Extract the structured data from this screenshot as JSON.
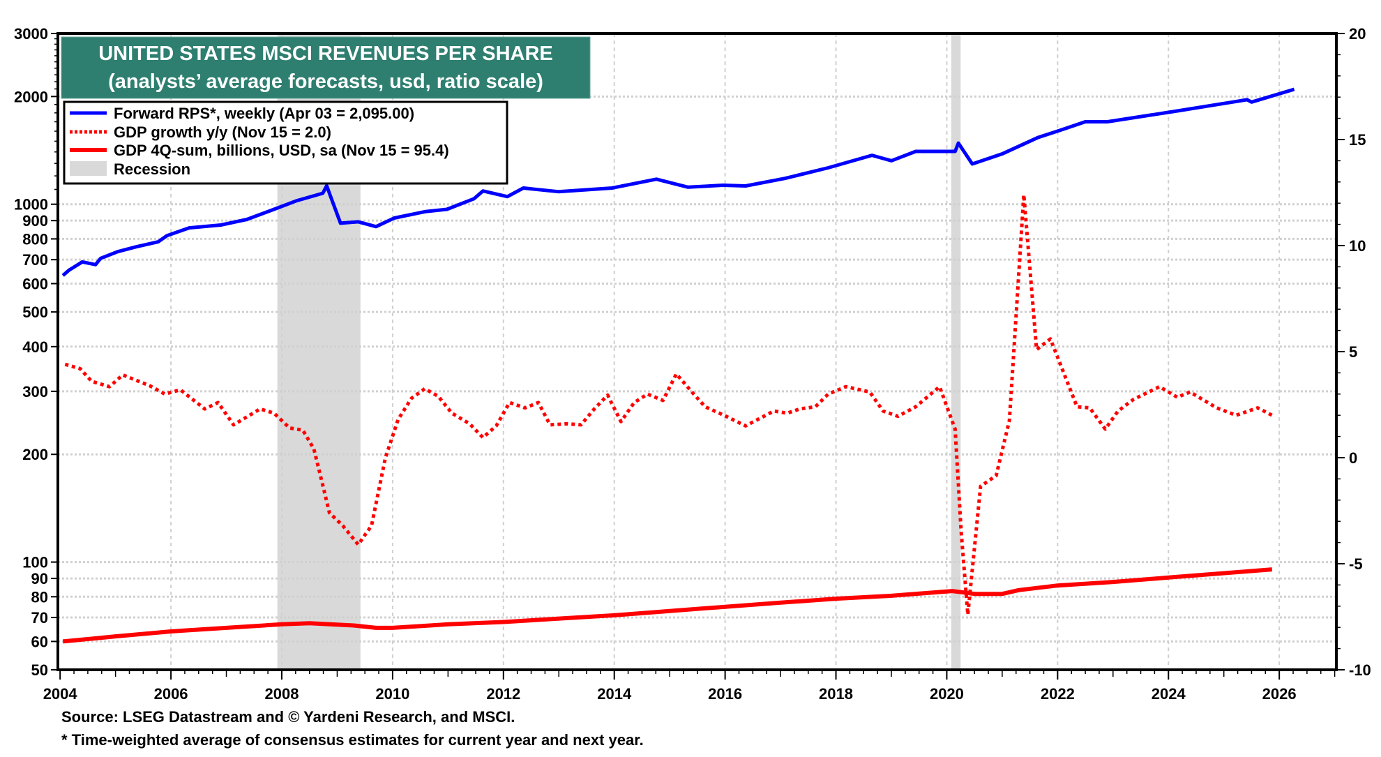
{
  "chart_data": {
    "type": "line",
    "title": "UNITED STATES MSCI REVENUES PER SHARE",
    "subtitle": "(analysts’ average forecasts, usd, ratio scale)",
    "xlim": [
      2003.96,
      2027.03
    ],
    "x_ticks": [
      "2004",
      "2006",
      "2008",
      "2010",
      "2012",
      "2014",
      "2016",
      "2018",
      "2020",
      "2022",
      "2024",
      "2026"
    ],
    "y_left": {
      "scale": "log",
      "range": [
        50,
        3000
      ],
      "ticks": [
        "3000",
        "2000",
        "1000",
        "900",
        "800",
        "700",
        "600",
        "500",
        "400",
        "300",
        "200",
        "100",
        "90",
        "80",
        "70",
        "60",
        "50"
      ]
    },
    "y_right": {
      "scale": "linear",
      "range": [
        -10,
        20
      ],
      "ticks": [
        "20",
        "15",
        "10",
        "5",
        "0",
        "-5",
        "-10"
      ]
    },
    "grid": true,
    "legend_placement": "top-left",
    "recessions": [
      [
        2007.92,
        2009.42
      ],
      [
        2020.08,
        2020.25
      ]
    ],
    "legend": [
      {
        "label": "Forward RPS*, weekly (Apr 03 = 2,095.00)",
        "style": "solid",
        "color": "#0000ff"
      },
      {
        "label": "GDP growth y/y (Nov 15 = 2.0)",
        "style": "dotted",
        "color": "#ff0000"
      },
      {
        "label": "GDP 4Q-sum, billions, USD, sa (Nov 15 = 95.4)",
        "style": "solid",
        "color": "#ff0000"
      },
      {
        "label": "Recession",
        "style": "box",
        "color": "#d9d9d9"
      }
    ],
    "series": [
      {
        "axis": "left",
        "color": "#0000ff",
        "points": [
          [
            2004.05,
            632
          ],
          [
            2004.16,
            654
          ],
          [
            2004.4,
            690
          ],
          [
            2004.64,
            678
          ],
          [
            2004.73,
            706
          ],
          [
            2005.04,
            737
          ],
          [
            2005.37,
            760
          ],
          [
            2005.77,
            785
          ],
          [
            2005.93,
            817
          ],
          [
            2006.33,
            859
          ],
          [
            2006.9,
            875
          ],
          [
            2007.37,
            907
          ],
          [
            2007.86,
            968
          ],
          [
            2008.26,
            1022
          ],
          [
            2008.74,
            1073
          ],
          [
            2008.81,
            1126
          ],
          [
            2008.9,
            1032
          ],
          [
            2009.06,
            885
          ],
          [
            2009.38,
            893
          ],
          [
            2009.7,
            866
          ],
          [
            2010.03,
            915
          ],
          [
            2010.58,
            953
          ],
          [
            2010.98,
            968
          ],
          [
            2011.47,
            1036
          ],
          [
            2011.63,
            1089
          ],
          [
            2012.07,
            1050
          ],
          [
            2012.36,
            1110
          ],
          [
            2012.99,
            1084
          ],
          [
            2013.96,
            1110
          ],
          [
            2014.76,
            1175
          ],
          [
            2015.33,
            1116
          ],
          [
            2015.96,
            1130
          ],
          [
            2016.37,
            1125
          ],
          [
            2017.08,
            1181
          ],
          [
            2017.86,
            1264
          ],
          [
            2018.65,
            1370
          ],
          [
            2019.0,
            1323
          ],
          [
            2019.44,
            1405
          ],
          [
            2020.15,
            1405
          ],
          [
            2020.21,
            1482
          ],
          [
            2020.46,
            1296
          ],
          [
            2021.01,
            1385
          ],
          [
            2021.64,
            1535
          ],
          [
            2022.04,
            1608
          ],
          [
            2022.5,
            1700
          ],
          [
            2022.9,
            1700
          ],
          [
            2024.16,
            1823
          ],
          [
            2025.42,
            1959
          ],
          [
            2025.5,
            1930
          ],
          [
            2026.27,
            2095
          ]
        ]
      },
      {
        "axis": "right",
        "color": "#ff0000",
        "dashed": true,
        "points": [
          [
            2004.09,
            4.4
          ],
          [
            2004.36,
            4.2
          ],
          [
            2004.57,
            3.6
          ],
          [
            2004.89,
            3.35
          ],
          [
            2005.13,
            3.9
          ],
          [
            2005.61,
            3.4
          ],
          [
            2005.89,
            3.0
          ],
          [
            2006.17,
            3.2
          ],
          [
            2006.61,
            2.3
          ],
          [
            2006.85,
            2.6
          ],
          [
            2007.13,
            1.55
          ],
          [
            2007.61,
            2.3
          ],
          [
            2007.86,
            2.1
          ],
          [
            2008.14,
            1.4
          ],
          [
            2008.38,
            1.3
          ],
          [
            2008.58,
            0.4
          ],
          [
            2008.74,
            -1.3
          ],
          [
            2008.86,
            -2.6
          ],
          [
            2009.1,
            -3.2
          ],
          [
            2009.38,
            -4.1
          ],
          [
            2009.62,
            -3.2
          ],
          [
            2009.87,
            0.0
          ],
          [
            2010.1,
            1.8
          ],
          [
            2010.34,
            2.8
          ],
          [
            2010.58,
            3.25
          ],
          [
            2010.82,
            2.9
          ],
          [
            2011.07,
            2.1
          ],
          [
            2011.39,
            1.6
          ],
          [
            2011.63,
            0.95
          ],
          [
            2011.87,
            1.5
          ],
          [
            2012.11,
            2.6
          ],
          [
            2012.39,
            2.35
          ],
          [
            2012.63,
            2.6
          ],
          [
            2012.84,
            1.55
          ],
          [
            2013.15,
            1.6
          ],
          [
            2013.4,
            1.55
          ],
          [
            2013.64,
            2.3
          ],
          [
            2013.88,
            2.95
          ],
          [
            2014.12,
            1.7
          ],
          [
            2014.36,
            2.6
          ],
          [
            2014.6,
            3.0
          ],
          [
            2014.88,
            2.7
          ],
          [
            2015.12,
            3.95
          ],
          [
            2015.4,
            3.1
          ],
          [
            2015.64,
            2.4
          ],
          [
            2015.98,
            2.0
          ],
          [
            2016.37,
            1.5
          ],
          [
            2016.88,
            2.2
          ],
          [
            2017.12,
            2.1
          ],
          [
            2017.35,
            2.3
          ],
          [
            2017.63,
            2.4
          ],
          [
            2017.86,
            3.0
          ],
          [
            2018.18,
            3.35
          ],
          [
            2018.61,
            3.1
          ],
          [
            2018.85,
            2.2
          ],
          [
            2019.12,
            1.95
          ],
          [
            2019.44,
            2.4
          ],
          [
            2019.87,
            3.35
          ],
          [
            2020.15,
            1.35
          ],
          [
            2020.26,
            -3.5
          ],
          [
            2020.38,
            -7.4
          ],
          [
            2020.61,
            -1.35
          ],
          [
            2020.89,
            -0.85
          ],
          [
            2021.13,
            1.75
          ],
          [
            2021.39,
            12.4
          ],
          [
            2021.62,
            5.1
          ],
          [
            2021.87,
            5.6
          ],
          [
            2022.35,
            2.4
          ],
          [
            2022.58,
            2.35
          ],
          [
            2022.86,
            1.35
          ],
          [
            2023.09,
            2.2
          ],
          [
            2023.37,
            2.75
          ],
          [
            2023.84,
            3.35
          ],
          [
            2024.16,
            2.85
          ],
          [
            2024.39,
            3.1
          ],
          [
            2024.87,
            2.35
          ],
          [
            2025.22,
            2.0
          ],
          [
            2025.61,
            2.35
          ],
          [
            2025.87,
            2.0
          ]
        ]
      },
      {
        "axis": "left",
        "color": "#ff0000",
        "points": [
          [
            2004.05,
            60
          ],
          [
            2005,
            62
          ],
          [
            2006,
            64
          ],
          [
            2007,
            65.5
          ],
          [
            2008,
            67
          ],
          [
            2008.5,
            67.5
          ],
          [
            2009.3,
            66.5
          ],
          [
            2009.7,
            65.5
          ],
          [
            2010,
            65.5
          ],
          [
            2011,
            67
          ],
          [
            2012,
            68
          ],
          [
            2013,
            69.5
          ],
          [
            2014,
            71
          ],
          [
            2015,
            73
          ],
          [
            2016,
            75
          ],
          [
            2017,
            77
          ],
          [
            2018,
            79
          ],
          [
            2019,
            80.5
          ],
          [
            2020.1,
            83
          ],
          [
            2020.5,
            81.5
          ],
          [
            2021,
            81.5
          ],
          [
            2021.3,
            83.5
          ],
          [
            2022,
            86
          ],
          [
            2023,
            88
          ],
          [
            2024,
            90.5
          ],
          [
            2025.87,
            95.4
          ]
        ]
      }
    ]
  },
  "footer": {
    "source": "Source: LSEG Datastream and © Yardeni Research, and MSCI.",
    "note": "* Time-weighted average of consensus estimates for current year and next year."
  }
}
